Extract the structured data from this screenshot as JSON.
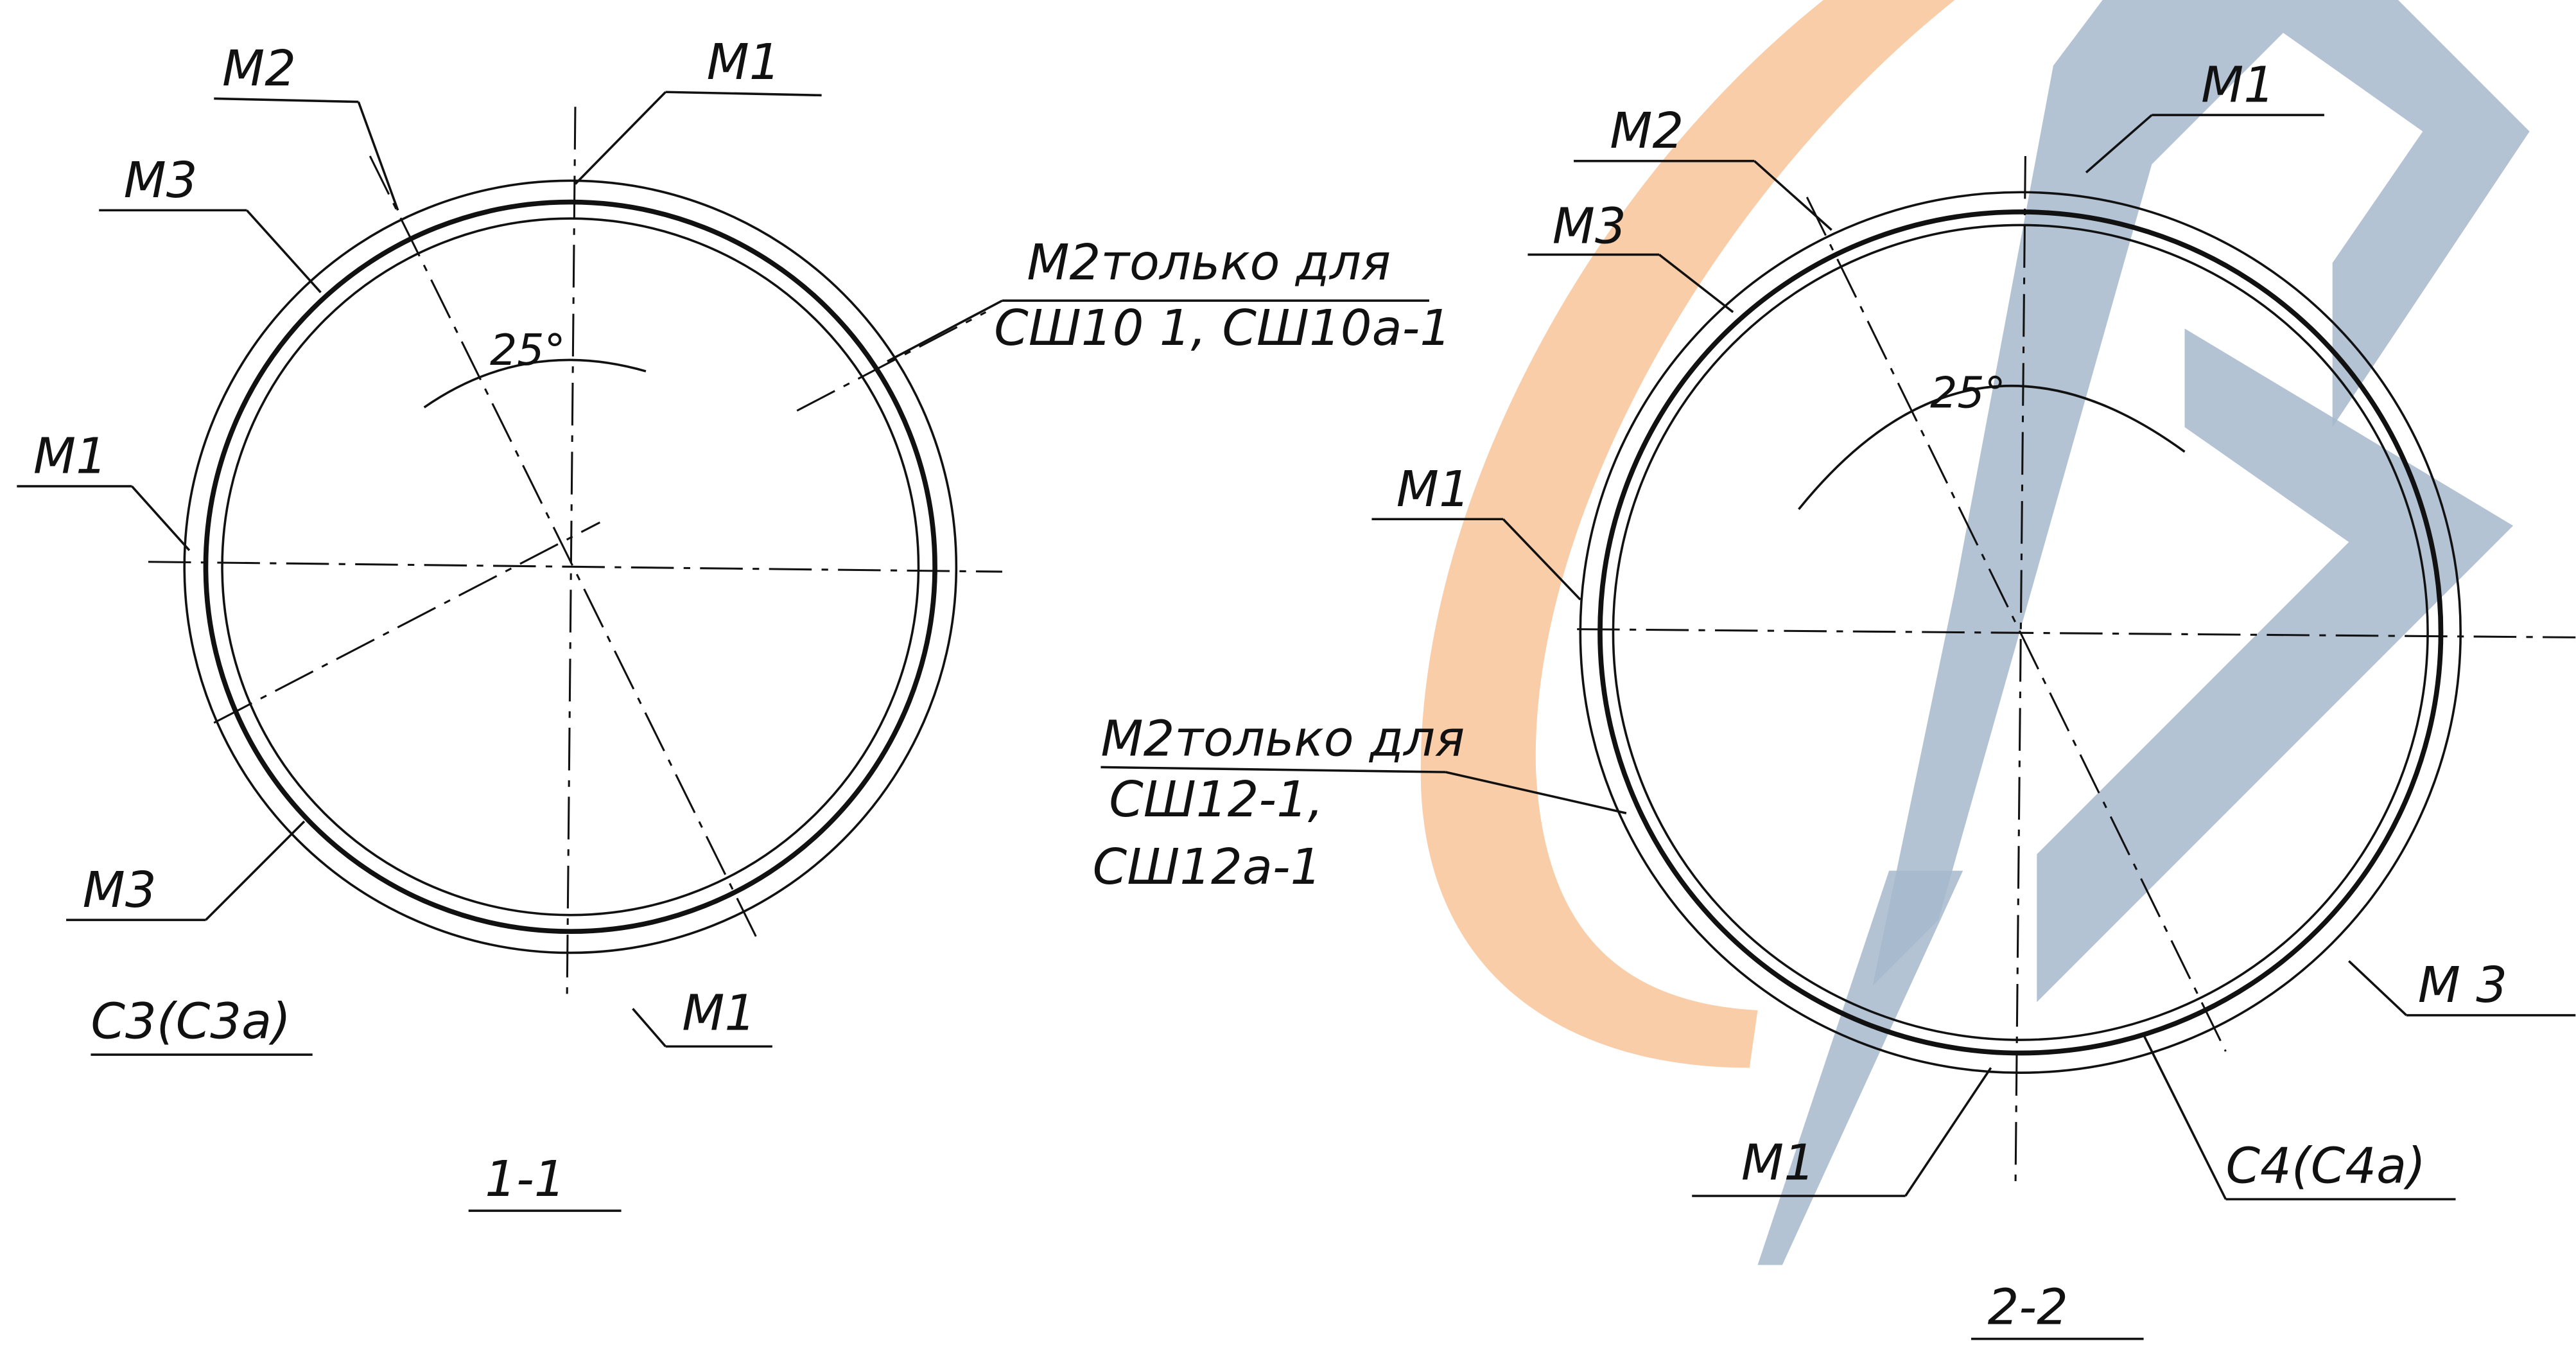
{
  "sections": [
    {
      "title": "1-1",
      "angle": "25°",
      "labels": [
        "М2",
        "М1",
        "М3",
        "М1",
        "М2только для",
        "СШ10 1, СШ10а-1",
        "М3",
        "С3(С3а)",
        "М1"
      ]
    },
    {
      "title": "2-2",
      "angle": "25°",
      "labels": [
        "М2",
        "М1",
        "М3",
        "М1",
        "М2только для",
        "СШ12-1,",
        "СШ12а-1",
        "М 3",
        "С4(С4а)",
        "М1"
      ]
    }
  ]
}
